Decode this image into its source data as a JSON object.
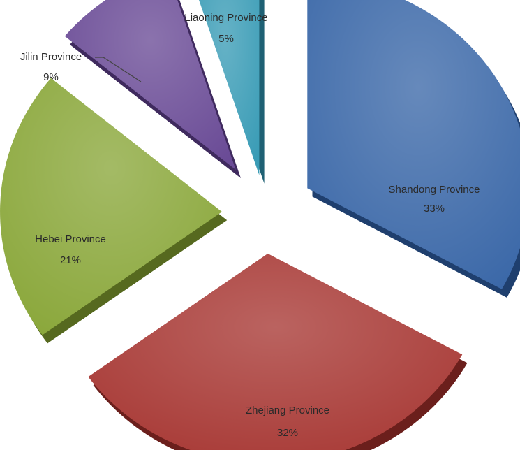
{
  "chart_data": {
    "type": "pie",
    "style": "3d-exploded",
    "legend": "none",
    "slices": [
      {
        "name": "Shandong Province",
        "value": 33,
        "label": "33%",
        "color": "#3b68a8",
        "shadow": "#1f3f6e"
      },
      {
        "name": "Zhejiang Province",
        "value": 32,
        "label": "32%",
        "color": "#a73733",
        "shadow": "#6b1f1c"
      },
      {
        "name": "Hebei Province",
        "value": 21,
        "label": "21%",
        "color": "#8aa73a",
        "shadow": "#56691f"
      },
      {
        "name": "Jilin Province",
        "value": 9,
        "label": "9%",
        "color": "#6a4b96",
        "shadow": "#3f2a5e"
      },
      {
        "name": "Liaoning Province",
        "value": 5,
        "label": "5%",
        "color": "#3a9cb6",
        "shadow": "#1f6174"
      }
    ]
  }
}
